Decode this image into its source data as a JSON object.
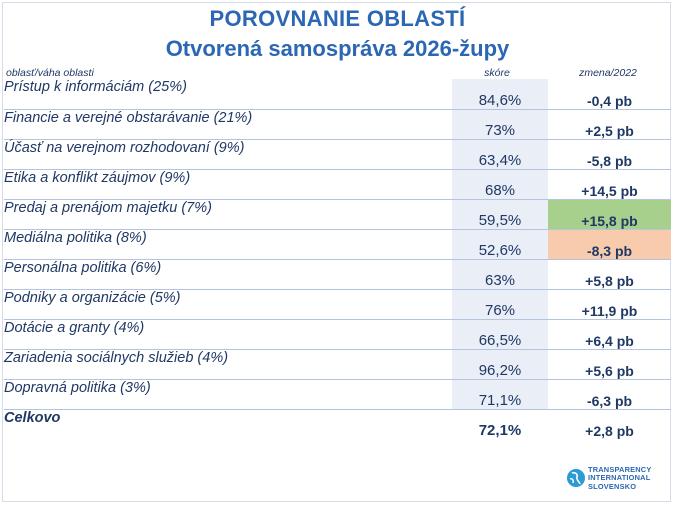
{
  "title_line1": "POROVNANIE OBLASTÍ",
  "title_line2": "Otvorená samospráva 2026-župy",
  "headers": {
    "area": "oblasť/váha oblasti",
    "score": "skóre",
    "change": "zmena/2022"
  },
  "rows": [
    {
      "area": "Prístup k informáciám (25%)",
      "score": "84,6%",
      "change": "-0,4 pb"
    },
    {
      "area": "Financie a verejné obstarávanie (21%)",
      "score": "73%",
      "change": "+2,5 pb"
    },
    {
      "area": "Účasť na verejnom rozhodovaní (9%)",
      "score": "63,4%",
      "change": "-5,8 pb"
    },
    {
      "area": "Etika a konflikt záujmov (9%)",
      "score": "68%",
      "change": "+14,5 pb"
    },
    {
      "area": "Predaj a prenájom majetku (7%)",
      "score": "59,5%",
      "change": "+15,8 pb",
      "highlight": "up"
    },
    {
      "area": "Mediálna politika (8%)",
      "score": "52,6%",
      "change": "-8,3 pb",
      "highlight": "down"
    },
    {
      "area": "Personálna politika (6%)",
      "score": "63%",
      "change": "+5,8 pb"
    },
    {
      "area": "Podniky a organizácie (5%)",
      "score": "76%",
      "change": "+11,9 pb"
    },
    {
      "area": "Dotácie a granty (4%)",
      "score": "66,5%",
      "change": "+6,4 pb"
    },
    {
      "area": "Zariadenia sociálnych služieb (4%)",
      "score": "96,2%",
      "change": "+5,6 pb"
    },
    {
      "area": "Dopravná politika (3%)",
      "score": "71,1%",
      "change": "-6,3 pb"
    }
  ],
  "total": {
    "area": "Celkovo",
    "score": "72,1%",
    "change": "+2,8 pb"
  },
  "logo": {
    "line1": "TRANSPARENCY",
    "line2": "INTERNATIONAL",
    "line3": "SLOVENSKO",
    "icon": "globe-icon"
  },
  "colors": {
    "title": "#2b67b3",
    "text": "#1f3864",
    "score_bg": "#e9eef7",
    "highlight_up": "#a8d08d",
    "highlight_down": "#f8cbad"
  }
}
